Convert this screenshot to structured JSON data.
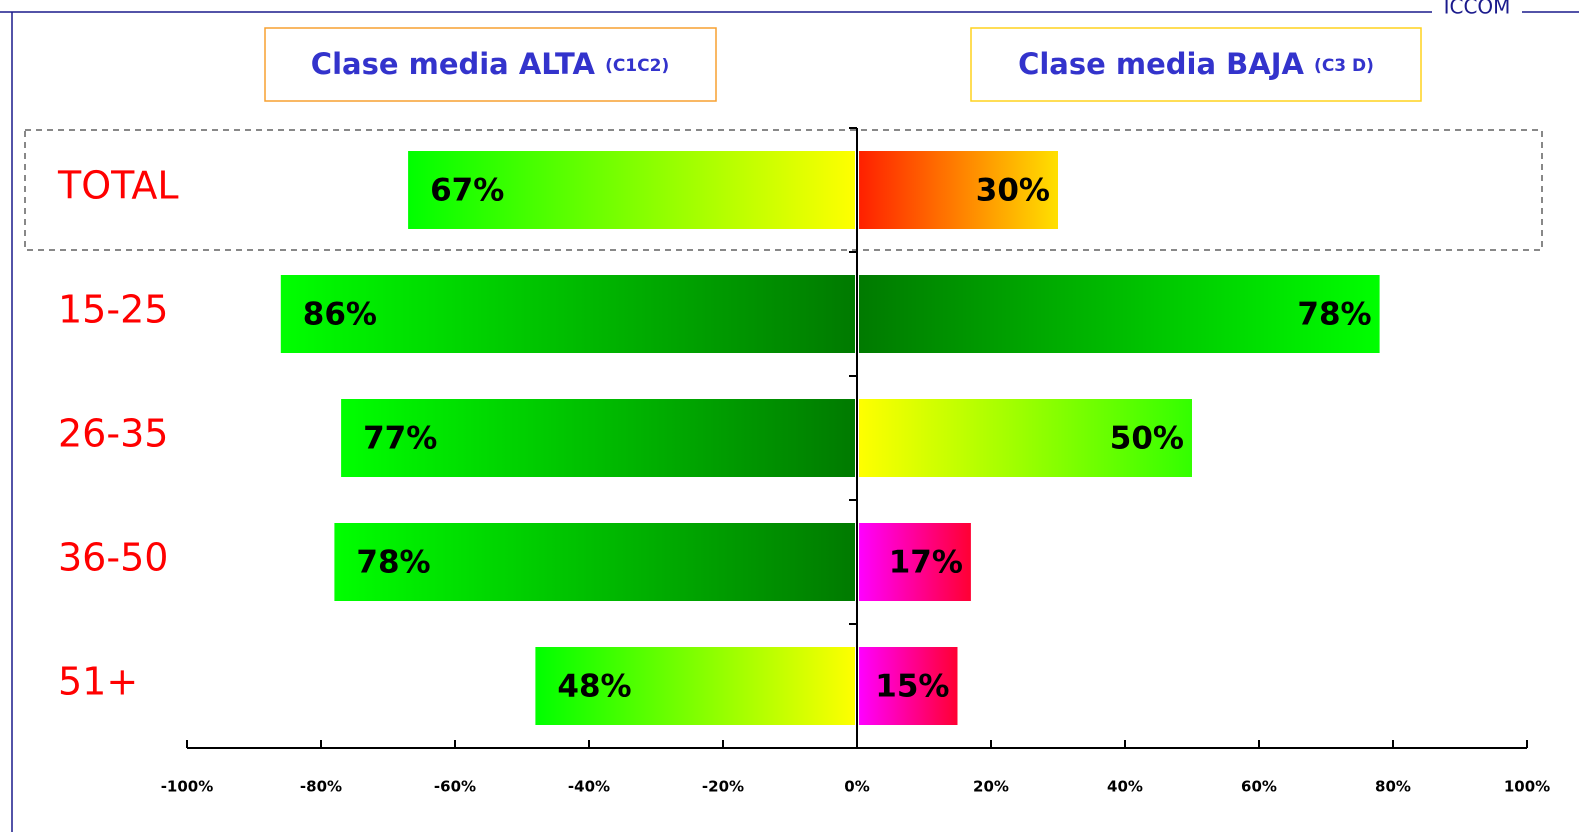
{
  "chart_data": {
    "type": "diverging-bar",
    "brand": "ICCOM",
    "categories": [
      "TOTAL",
      "15-25",
      "26-35",
      "36-50",
      "51+"
    ],
    "series": [
      {
        "name": "Clase media ALTA",
        "name_note": "(C1C2)",
        "legend_border": "#f7a030",
        "values": [
          -67,
          -86,
          -77,
          -78,
          -48
        ],
        "value_labels": [
          "67%",
          "86%",
          "77%",
          "78%",
          "48%"
        ],
        "gradients": [
          [
            "#00ff00",
            "#ffff00"
          ],
          [
            "#00ff00",
            "#007a00"
          ],
          [
            "#00ff00",
            "#007a00"
          ],
          [
            "#00ff00",
            "#007a00"
          ],
          [
            "#00ff00",
            "#ffff00"
          ]
        ]
      },
      {
        "name": "Clase media BAJA",
        "name_note": "(C3 D)",
        "legend_border": "#ffd21e",
        "values": [
          30,
          78,
          50,
          17,
          15
        ],
        "value_labels": [
          "30%",
          "78%",
          "50%",
          "17%",
          "15%"
        ],
        "gradients": [
          [
            "#ff2000",
            "#ffe000"
          ],
          [
            "#007a00",
            "#00ff00"
          ],
          [
            "#ffff00",
            "#33ff00"
          ],
          [
            "#ff00ff",
            "#ff0033"
          ],
          [
            "#ff00ff",
            "#ff0033"
          ]
        ]
      }
    ],
    "xlim": [
      -100,
      100
    ],
    "xticks": [
      {
        "value": -100,
        "label": "-100%"
      },
      {
        "value": -80,
        "label": "-80%"
      },
      {
        "value": -60,
        "label": "-60%"
      },
      {
        "value": -40,
        "label": "-40%"
      },
      {
        "value": -20,
        "label": "-20%"
      },
      {
        "value": 0,
        "label": "0%"
      },
      {
        "value": 20,
        "label": "20%"
      },
      {
        "value": 40,
        "label": "40%"
      },
      {
        "value": 60,
        "label": "60%"
      },
      {
        "value": 80,
        "label": "80%"
      },
      {
        "value": 100,
        "label": "100%"
      }
    ]
  }
}
